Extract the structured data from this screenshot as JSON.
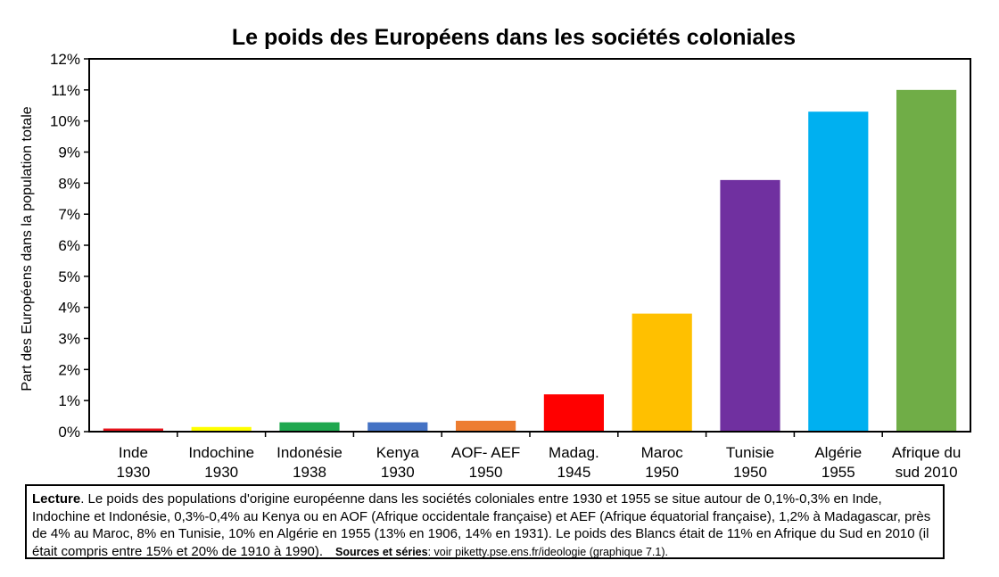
{
  "chart_data": {
    "type": "bar",
    "title": "Le poids des Européens dans les sociétés coloniales",
    "ylabel": "Part des Européens dans la population totale",
    "xlabel": "",
    "ylim": [
      0,
      12
    ],
    "yticks": [
      "0%",
      "1%",
      "2%",
      "3%",
      "4%",
      "5%",
      "6%",
      "7%",
      "8%",
      "9%",
      "10%",
      "11%",
      "12%"
    ],
    "grid": false,
    "categories": [
      {
        "line1": "Inde",
        "line2": "1930"
      },
      {
        "line1": "Indochine",
        "line2": "1930"
      },
      {
        "line1": "Indonésie",
        "line2": "1938"
      },
      {
        "line1": "Kenya",
        "line2": "1930"
      },
      {
        "line1": "AOF- AEF",
        "line2": "1950"
      },
      {
        "line1": "Madag.",
        "line2": "1945"
      },
      {
        "line1": "Maroc",
        "line2": "1950"
      },
      {
        "line1": "Tunisie",
        "line2": "1950"
      },
      {
        "line1": "Algérie",
        "line2": "1955"
      },
      {
        "line1": "Afrique du",
        "line2": "sud 2010"
      }
    ],
    "values": [
      0.1,
      0.15,
      0.3,
      0.3,
      0.35,
      1.2,
      3.8,
      8.1,
      10.3,
      11.0
    ],
    "colors": [
      "#e6131b",
      "#ffff00",
      "#1fa84f",
      "#4472c4",
      "#ed7d31",
      "#ff0000",
      "#ffc000",
      "#7030a0",
      "#00b0f0",
      "#70ad47"
    ]
  },
  "caption": {
    "lead": "Lecture",
    "text": ". Le poids des populations d'origine européenne dans les sociétés coloniales entre 1930 et 1955 se situe autour de 0,1%-0,3% en Inde, Indochine et Indonésie, 0,3%-0,4% au Kenya ou en AOF (Afrique occidentale française) et AEF (Afrique équatorial française), 1,2% à Madagascar, près de 4% au Maroc, 8% en Tunisie, 10% en Algérie en 1955 (13% en 1906, 14% en 1931). Le poids des Blancs était de 11% en Afrique du Sud en 2010 (il était compris entre 15% et 20% de 1910 à 1990).",
    "sources_label": "Sources et séries",
    "sources_text": ": voir piketty.pse.ens.fr/ideologie (graphique 7.1)."
  }
}
